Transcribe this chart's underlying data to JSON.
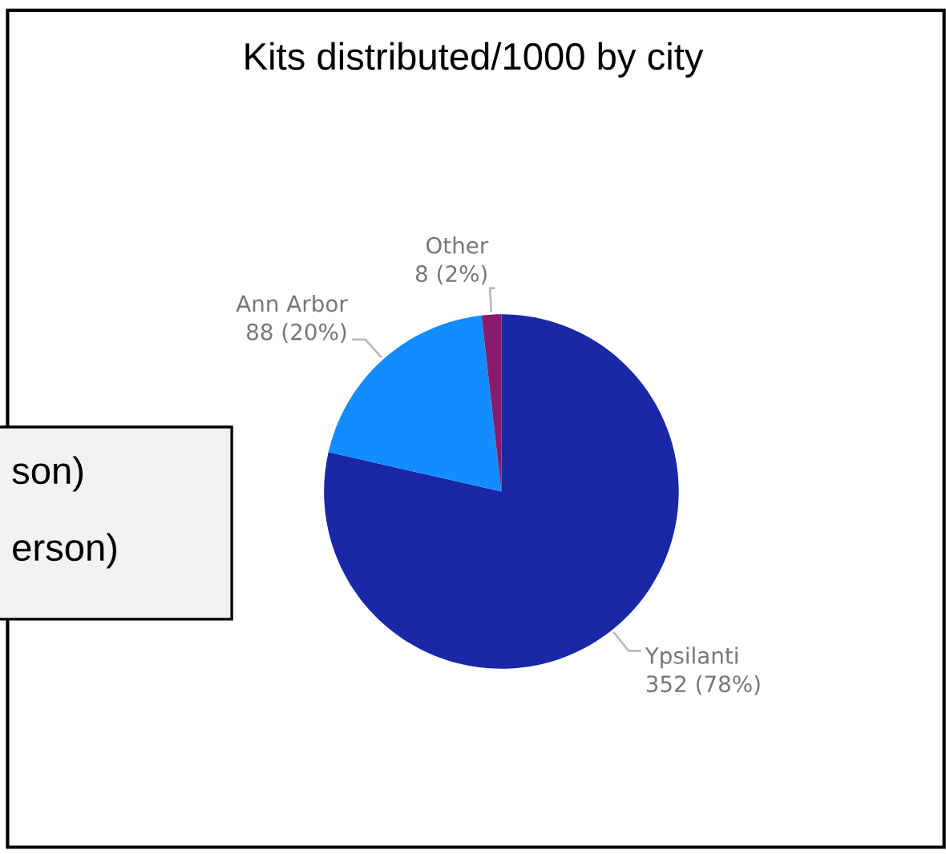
{
  "chart_data": {
    "type": "pie",
    "title": "Kits distributed/1000 by city",
    "categories": [
      "Ypsilanti",
      "Ann Arbor",
      "Other"
    ],
    "values": [
      352,
      88,
      8
    ],
    "value_labels": [
      "352 (78%)",
      "88 (20%)",
      "8 (2%)"
    ],
    "colors": [
      "#1a27a6",
      "#128cff",
      "#8a1a6e"
    ],
    "annotations": [
      "son)",
      "erson)"
    ]
  }
}
